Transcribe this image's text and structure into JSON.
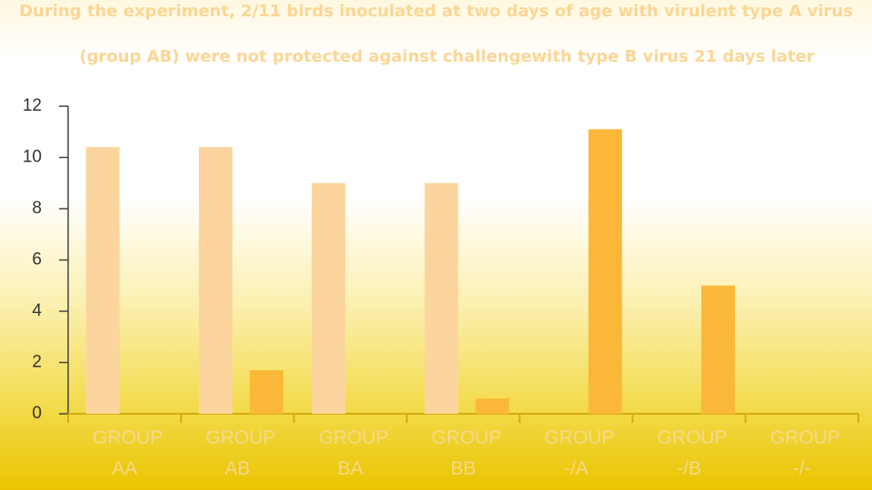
{
  "chart_data": {
    "type": "bar",
    "title": "During the experiment, 2/11 birds inoculated at two days of age with virulent type A virus",
    "subtitle": "(group AB) were not protected against challengewith type B virus 21 days later",
    "categories": [
      "GROUP AA",
      "GROUP AB",
      "GROUP BA",
      "GROUP BB",
      "GROUP -/A",
      "GROUP -/B",
      "GROUP -/-"
    ],
    "series": [
      {
        "color": "#fcd59e",
        "values": [
          10.4,
          10.4,
          9,
          9,
          0,
          0,
          0
        ]
      },
      {
        "color": "#fbb838",
        "values": [
          0,
          1.7,
          0,
          0.6,
          11.1,
          5,
          0
        ]
      }
    ],
    "ylim": [
      0,
      12
    ],
    "yticks": [
      0,
      2,
      4,
      6,
      8,
      10,
      12
    ]
  }
}
